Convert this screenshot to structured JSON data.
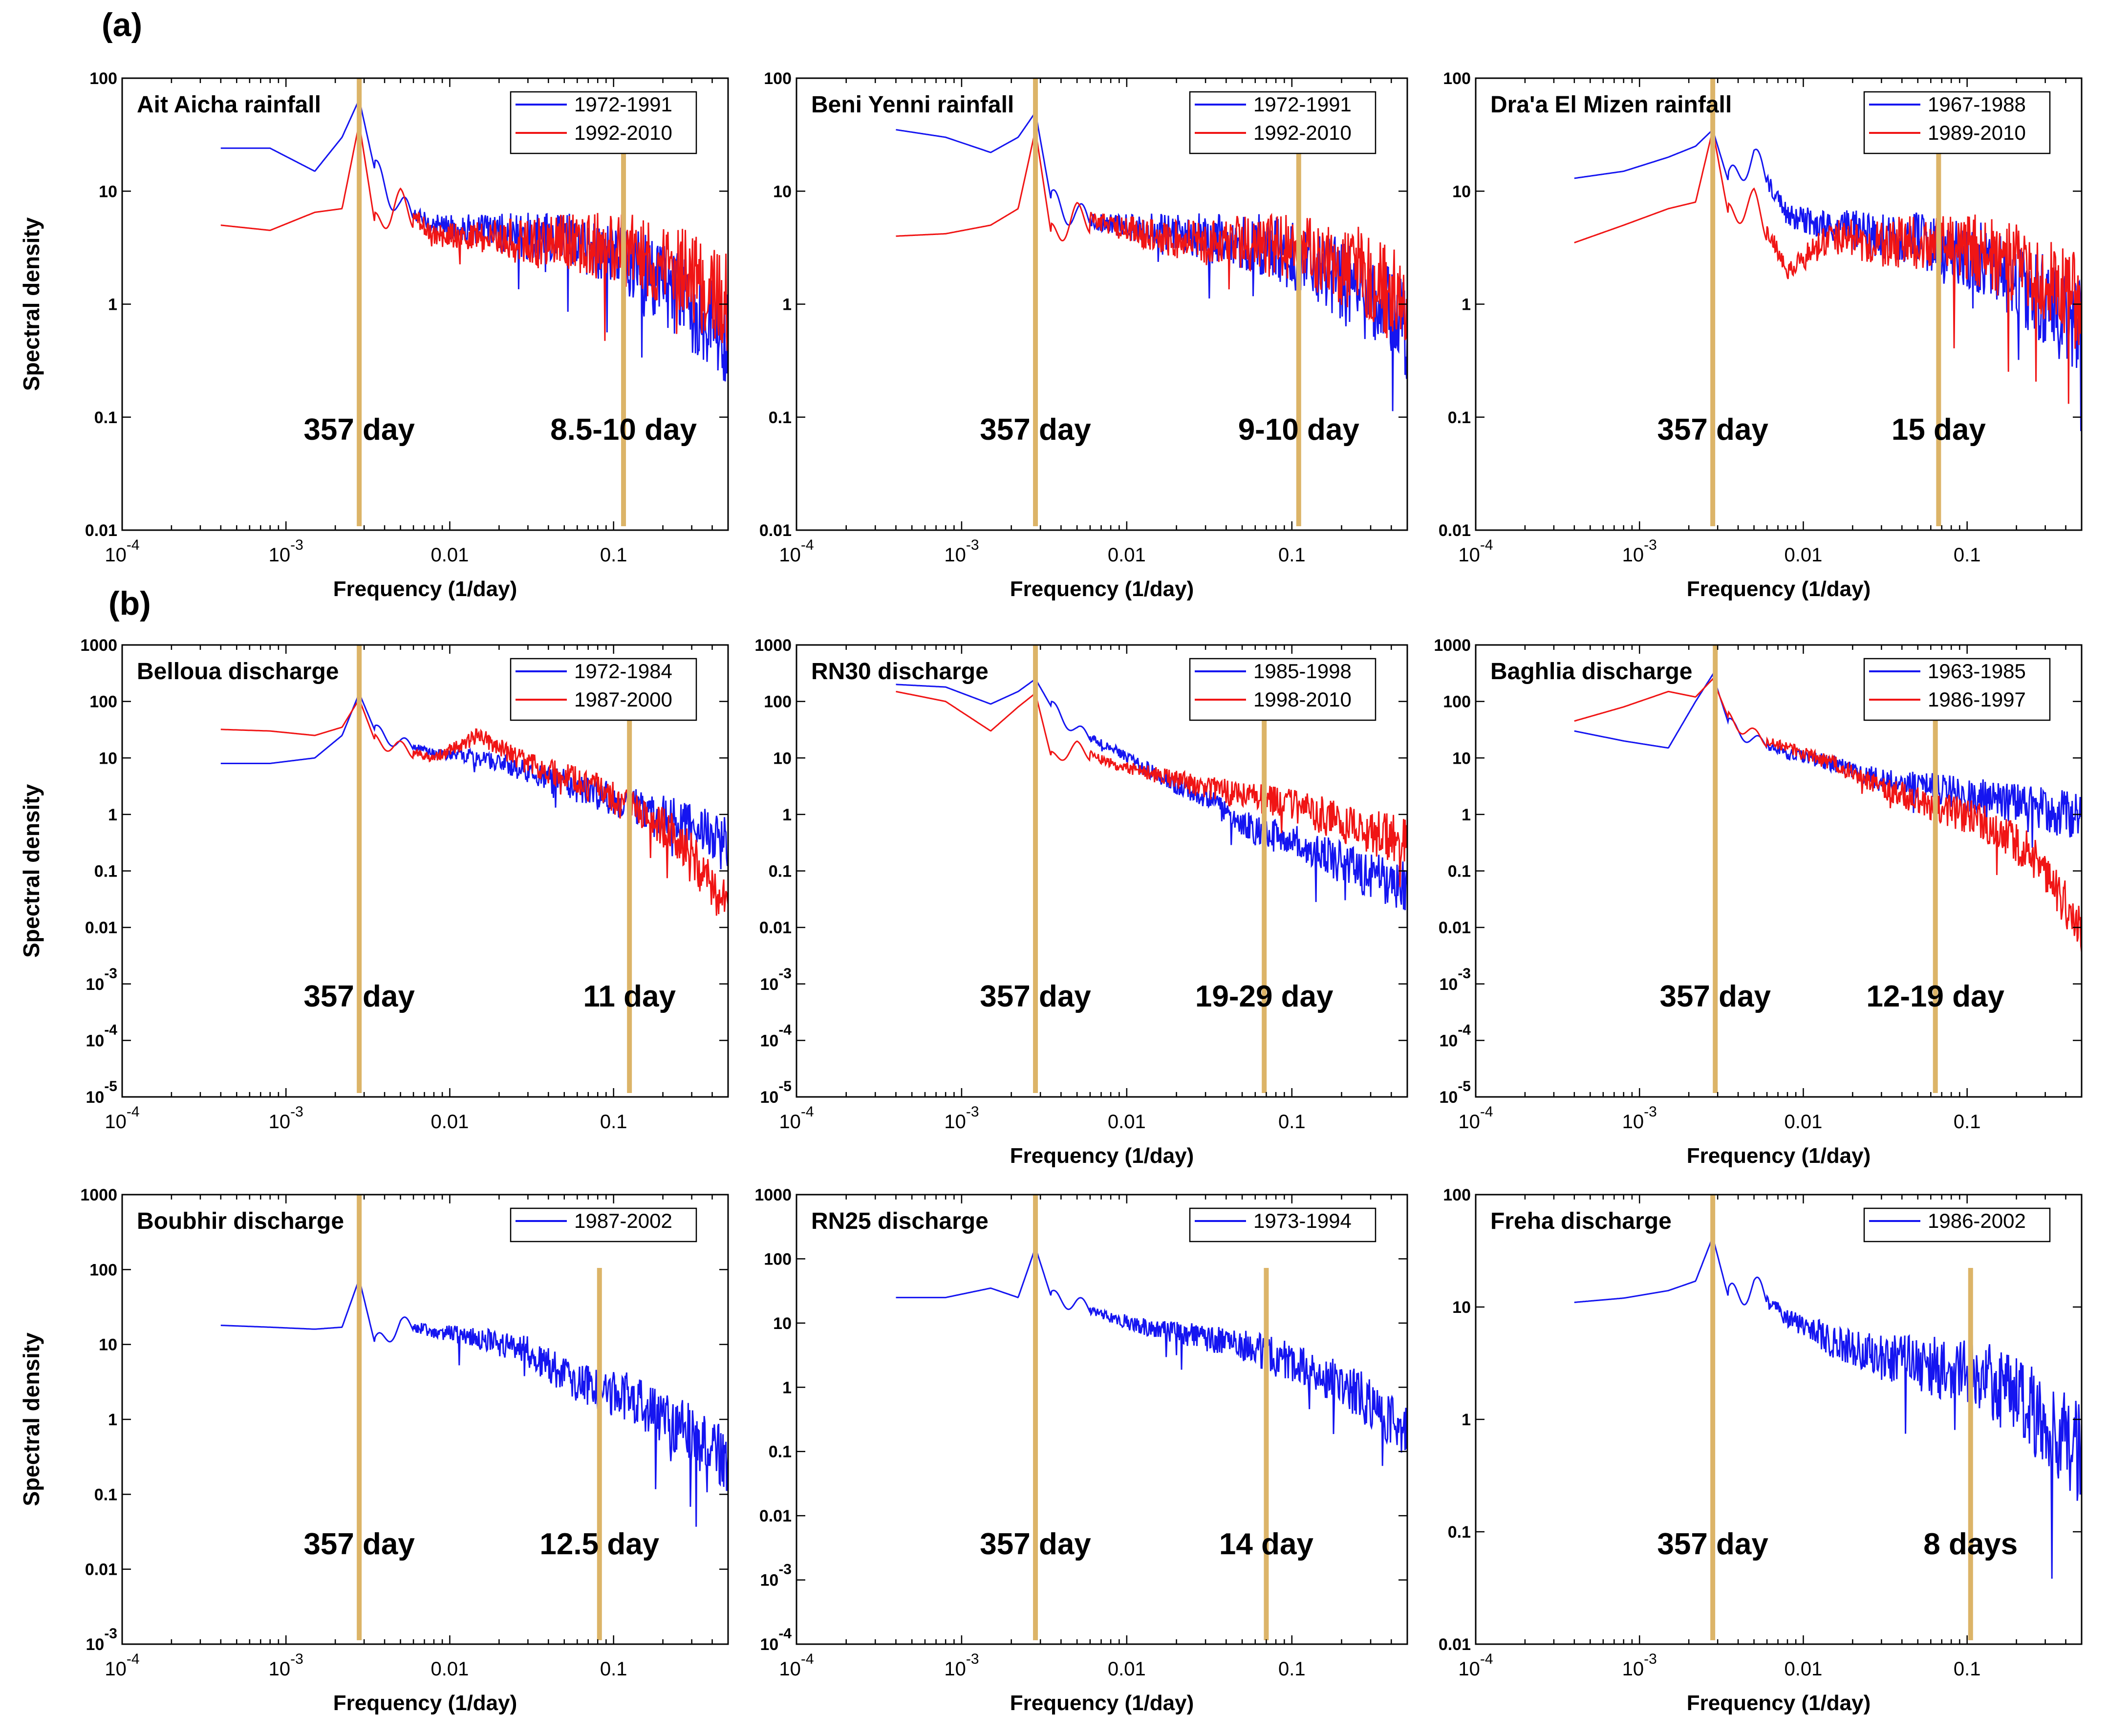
{
  "figure": {
    "panel_labels": [
      "(a)",
      "(b)"
    ],
    "series_colors": {
      "first": "#1515f0",
      "second": "#f01515"
    },
    "marker_color": "#dcb468"
  },
  "chart_data": [
    {
      "type": "line",
      "xscale": "log",
      "yscale": "log",
      "xlim": [
        0.0001,
        0.5
      ],
      "ylim": [
        0.01,
        100
      ],
      "xticks": [
        "10-4",
        "10-3",
        "0.01",
        "0.1"
      ],
      "yticks": [
        "0.01",
        "0.1",
        "1",
        "10",
        "100"
      ],
      "title": "Ait Aicha rainfall",
      "xlabel": "Frequency (1/day)",
      "ylabel": "Spectral density",
      "legend": "top-right",
      "series": [
        {
          "name": "1972-1991",
          "x": [
            0.0004,
            0.0008,
            0.0015,
            0.0022,
            0.0028,
            0.0035,
            0.005,
            0.008,
            0.015,
            0.03,
            0.06,
            0.12,
            0.25,
            0.5
          ],
          "y": [
            24,
            24,
            15,
            30,
            65,
            15,
            7,
            5,
            4.5,
            4,
            3.5,
            2.5,
            1.2,
            0.5
          ]
        },
        {
          "name": "1992-2010",
          "x": [
            0.0004,
            0.0008,
            0.0015,
            0.0022,
            0.0028,
            0.0035,
            0.005,
            0.008,
            0.015,
            0.03,
            0.06,
            0.12,
            0.25,
            0.5
          ],
          "y": [
            5,
            4.5,
            6.5,
            7,
            40,
            5,
            8,
            4,
            4,
            3.5,
            3.5,
            3,
            2,
            1
          ]
        }
      ],
      "markers": [
        {
          "x": 0.0028,
          "label": "357 day"
        },
        {
          "x": 0.115,
          "label": "8.5-10 day"
        }
      ]
    },
    {
      "type": "line",
      "xscale": "log",
      "yscale": "log",
      "xlim": [
        0.0001,
        0.5
      ],
      "ylim": [
        0.01,
        100
      ],
      "xticks": [
        "10-4",
        "10-3",
        "0.01",
        "0.1"
      ],
      "yticks": [
        "0.01",
        "0.1",
        "1",
        "10",
        "100"
      ],
      "title": "Beni Yenni rainfall",
      "xlabel": "Frequency (1/day)",
      "ylabel": "",
      "legend": "top-right",
      "series": [
        {
          "name": "1972-1991",
          "x": [
            0.0004,
            0.0008,
            0.0015,
            0.0022,
            0.0028,
            0.0035,
            0.005,
            0.008,
            0.015,
            0.03,
            0.06,
            0.12,
            0.25,
            0.5
          ],
          "y": [
            35,
            30,
            22,
            30,
            50,
            8,
            6,
            5,
            4.5,
            4,
            3.5,
            2.5,
            1.3,
            0.6
          ]
        },
        {
          "name": "1992-2010",
          "x": [
            0.0004,
            0.0008,
            0.0015,
            0.0022,
            0.0028,
            0.0035,
            0.005,
            0.008,
            0.015,
            0.03,
            0.06,
            0.12,
            0.25,
            0.5
          ],
          "y": [
            4,
            4.2,
            5,
            7,
            35,
            4,
            6,
            5,
            4,
            3.5,
            3.5,
            3,
            2,
            1
          ]
        }
      ],
      "markers": [
        {
          "x": 0.0028,
          "label": "357 day"
        },
        {
          "x": 0.11,
          "label": "9-10 day"
        }
      ]
    },
    {
      "type": "line",
      "xscale": "log",
      "yscale": "log",
      "xlim": [
        0.0001,
        0.5
      ],
      "ylim": [
        0.01,
        100
      ],
      "xticks": [
        "10-4",
        "10-3",
        "0.01",
        "0.1"
      ],
      "yticks": [
        "0.01",
        "0.1",
        "1",
        "10",
        "100"
      ],
      "title": "Dra'a El Mizen rainfall",
      "xlabel": "Frequency (1/day)",
      "ylabel": "",
      "legend": "top-right",
      "series": [
        {
          "name": "1967-1988",
          "x": [
            0.0004,
            0.0008,
            0.0015,
            0.0022,
            0.0028,
            0.0035,
            0.005,
            0.008,
            0.015,
            0.03,
            0.06,
            0.12,
            0.25,
            0.5
          ],
          "y": [
            13,
            15,
            20,
            25,
            35,
            12,
            20,
            6,
            5,
            4,
            3.5,
            2.5,
            1.3,
            0.6
          ]
        },
        {
          "name": "1989-2010",
          "x": [
            0.0004,
            0.0008,
            0.0015,
            0.0022,
            0.0028,
            0.0035,
            0.005,
            0.008,
            0.015,
            0.03,
            0.06,
            0.12,
            0.25,
            0.5
          ],
          "y": [
            3.5,
            5,
            7,
            8,
            35,
            6,
            8,
            2,
            4,
            3.5,
            3.5,
            3,
            2,
            1
          ]
        }
      ],
      "markers": [
        {
          "x": 0.0028,
          "label": "357 day"
        },
        {
          "x": 0.067,
          "label": "15 day"
        }
      ]
    },
    {
      "type": "line",
      "xscale": "log",
      "yscale": "log",
      "xlim": [
        0.0001,
        0.5
      ],
      "ylim": [
        1e-05,
        1000
      ],
      "xticks": [
        "10-4",
        "10-3",
        "0.01",
        "0.1"
      ],
      "yticks": [
        "10-5",
        "10-4",
        "10-3",
        "0.01",
        "0.1",
        "1",
        "10",
        "100",
        "1000"
      ],
      "title": "Belloua discharge",
      "xlabel": "",
      "ylabel": "Spectral density",
      "legend": "top-right",
      "series": [
        {
          "name": "1972-1984",
          "x": [
            0.0004,
            0.0008,
            0.0015,
            0.0022,
            0.0028,
            0.0035,
            0.005,
            0.008,
            0.015,
            0.03,
            0.06,
            0.12,
            0.25,
            0.5
          ],
          "y": [
            8,
            8,
            10,
            25,
            140,
            30,
            18,
            12,
            10,
            6,
            3,
            1.5,
            0.8,
            0.3
          ]
        },
        {
          "name": "1987-2000",
          "x": [
            0.0004,
            0.0008,
            0.0015,
            0.0022,
            0.0028,
            0.0035,
            0.005,
            0.008,
            0.015,
            0.03,
            0.06,
            0.12,
            0.25,
            0.5
          ],
          "y": [
            32,
            30,
            25,
            35,
            110,
            20,
            15,
            10,
            25,
            8,
            4,
            1.5,
            0.4,
            0.02
          ]
        }
      ],
      "markers": [
        {
          "x": 0.0028,
          "label": "357 day"
        },
        {
          "x": 0.125,
          "label": "11 day"
        }
      ]
    },
    {
      "type": "line",
      "xscale": "log",
      "yscale": "log",
      "xlim": [
        0.0001,
        0.5
      ],
      "ylim": [
        1e-05,
        1000
      ],
      "xticks": [
        "10-4",
        "10-3",
        "0.01",
        "0.1"
      ],
      "yticks": [
        "10-5",
        "10-4",
        "10-3",
        "0.01",
        "0.1",
        "1",
        "10",
        "100",
        "1000"
      ],
      "title": "RN30 discharge",
      "xlabel": "Frequency (1/day)",
      "ylabel": "",
      "legend": "top-right",
      "series": [
        {
          "name": "1985-1998",
          "x": [
            0.0004,
            0.0008,
            0.0015,
            0.0022,
            0.0028,
            0.0035,
            0.005,
            0.008,
            0.015,
            0.03,
            0.06,
            0.12,
            0.25,
            0.5
          ],
          "y": [
            200,
            180,
            90,
            150,
            250,
            80,
            30,
            15,
            5,
            2,
            0.5,
            0.3,
            0.1,
            0.05
          ]
        },
        {
          "name": "1998-2010",
          "x": [
            0.0004,
            0.0008,
            0.0015,
            0.0022,
            0.0028,
            0.0035,
            0.005,
            0.008,
            0.015,
            0.03,
            0.06,
            0.12,
            0.25,
            0.5
          ],
          "y": [
            150,
            100,
            30,
            80,
            140,
            10,
            15,
            8,
            5,
            3,
            2,
            1.2,
            0.6,
            0.3
          ]
        }
      ],
      "markers": [
        {
          "x": 0.0028,
          "label": "357 day"
        },
        {
          "x": 0.068,
          "label": "19-29 day"
        }
      ]
    },
    {
      "type": "line",
      "xscale": "log",
      "yscale": "log",
      "xlim": [
        0.0001,
        0.5
      ],
      "ylim": [
        1e-05,
        1000
      ],
      "xticks": [
        "10-4",
        "10-3",
        "0.01",
        "0.1"
      ],
      "yticks": [
        "10-5",
        "10-4",
        "10-3",
        "0.01",
        "0.1",
        "1",
        "10",
        "100",
        "1000"
      ],
      "title": "Baghlia discharge",
      "xlabel": "Frequency (1/day)",
      "ylabel": "",
      "legend": "top-right",
      "series": [
        {
          "name": "1963-1985",
          "x": [
            0.0004,
            0.0008,
            0.0015,
            0.0022,
            0.0028,
            0.0035,
            0.005,
            0.008,
            0.015,
            0.03,
            0.06,
            0.12,
            0.25,
            0.5
          ],
          "y": [
            30,
            20,
            15,
            100,
            300,
            40,
            20,
            12,
            8,
            4,
            3,
            2,
            1.5,
            0.8
          ]
        },
        {
          "name": "1986-1997",
          "x": [
            0.0004,
            0.0008,
            0.0015,
            0.0022,
            0.0028,
            0.0035,
            0.005,
            0.008,
            0.015,
            0.03,
            0.06,
            0.12,
            0.25,
            0.5
          ],
          "y": [
            45,
            80,
            150,
            120,
            250,
            50,
            25,
            15,
            8,
            3,
            1.5,
            0.8,
            0.2,
            0.01
          ]
        }
      ],
      "markers": [
        {
          "x": 0.0029,
          "label": "357 day"
        },
        {
          "x": 0.064,
          "label": "12-19 day"
        }
      ]
    },
    {
      "type": "line",
      "xscale": "log",
      "yscale": "log",
      "xlim": [
        0.0001,
        0.5
      ],
      "ylim": [
        0.001,
        1000
      ],
      "xticks": [
        "10-4",
        "10-3",
        "0.01",
        "0.1"
      ],
      "yticks": [
        "10-3",
        "0.01",
        "0.1",
        "1",
        "10",
        "100",
        "1000"
      ],
      "title": "Boubhir discharge",
      "xlabel": "Frequency (1/day)",
      "ylabel": "Spectral density",
      "legend": "top-right",
      "series": [
        {
          "name": "1987-2002",
          "x": [
            0.0004,
            0.0008,
            0.0015,
            0.0022,
            0.0028,
            0.0035,
            0.005,
            0.008,
            0.015,
            0.03,
            0.06,
            0.12,
            0.25,
            0.5
          ],
          "y": [
            18,
            17,
            16,
            17,
            75,
            10,
            18,
            15,
            12,
            8,
            3,
            2,
            0.8,
            0.3
          ]
        }
      ],
      "markers": [
        {
          "x": 0.0028,
          "label": "357 day"
        },
        {
          "x": 0.082,
          "label": "12.5 day"
        }
      ]
    },
    {
      "type": "line",
      "xscale": "log",
      "yscale": "log",
      "xlim": [
        0.0001,
        0.5
      ],
      "ylim": [
        0.0001,
        1000
      ],
      "xticks": [
        "10-4",
        "10-3",
        "0.01",
        "0.1"
      ],
      "yticks": [
        "10-4",
        "10-3",
        "0.01",
        "0.1",
        "1",
        "10",
        "100",
        "1000"
      ],
      "title": "RN25 discharge",
      "xlabel": "Frequency (1/day)",
      "ylabel": "",
      "legend": "top-right",
      "series": [
        {
          "name": "1973-1994",
          "x": [
            0.0004,
            0.0008,
            0.0015,
            0.0022,
            0.0028,
            0.0035,
            0.005,
            0.008,
            0.015,
            0.03,
            0.06,
            0.12,
            0.25,
            0.5
          ],
          "y": [
            25,
            25,
            35,
            25,
            150,
            25,
            20,
            12,
            8,
            6,
            4,
            2,
            0.8,
            0.2
          ]
        }
      ],
      "markers": [
        {
          "x": 0.0028,
          "label": "357 day"
        },
        {
          "x": 0.07,
          "label": "14 day"
        }
      ]
    },
    {
      "type": "line",
      "xscale": "log",
      "yscale": "log",
      "xlim": [
        0.0001,
        0.5
      ],
      "ylim": [
        0.01,
        100
      ],
      "xticks": [
        "10-4",
        "10-3",
        "0.01",
        "0.1"
      ],
      "yticks": [
        "0.01",
        "0.1",
        "1",
        "10",
        "100"
      ],
      "title": "Freha discharge",
      "xlabel": "Frequency (1/day)",
      "ylabel": "",
      "legend": "top-right",
      "series": [
        {
          "name": "1986-2002",
          "x": [
            0.0004,
            0.0008,
            0.0015,
            0.0022,
            0.0028,
            0.0035,
            0.005,
            0.008,
            0.015,
            0.03,
            0.06,
            0.12,
            0.25,
            0.5
          ],
          "y": [
            11,
            12,
            14,
            17,
            42,
            12,
            15,
            8,
            5,
            3.5,
            3,
            2.5,
            1.2,
            0.5
          ]
        }
      ],
      "markers": [
        {
          "x": 0.0028,
          "label": "357 day"
        },
        {
          "x": 0.105,
          "label": "8 days"
        }
      ]
    }
  ]
}
